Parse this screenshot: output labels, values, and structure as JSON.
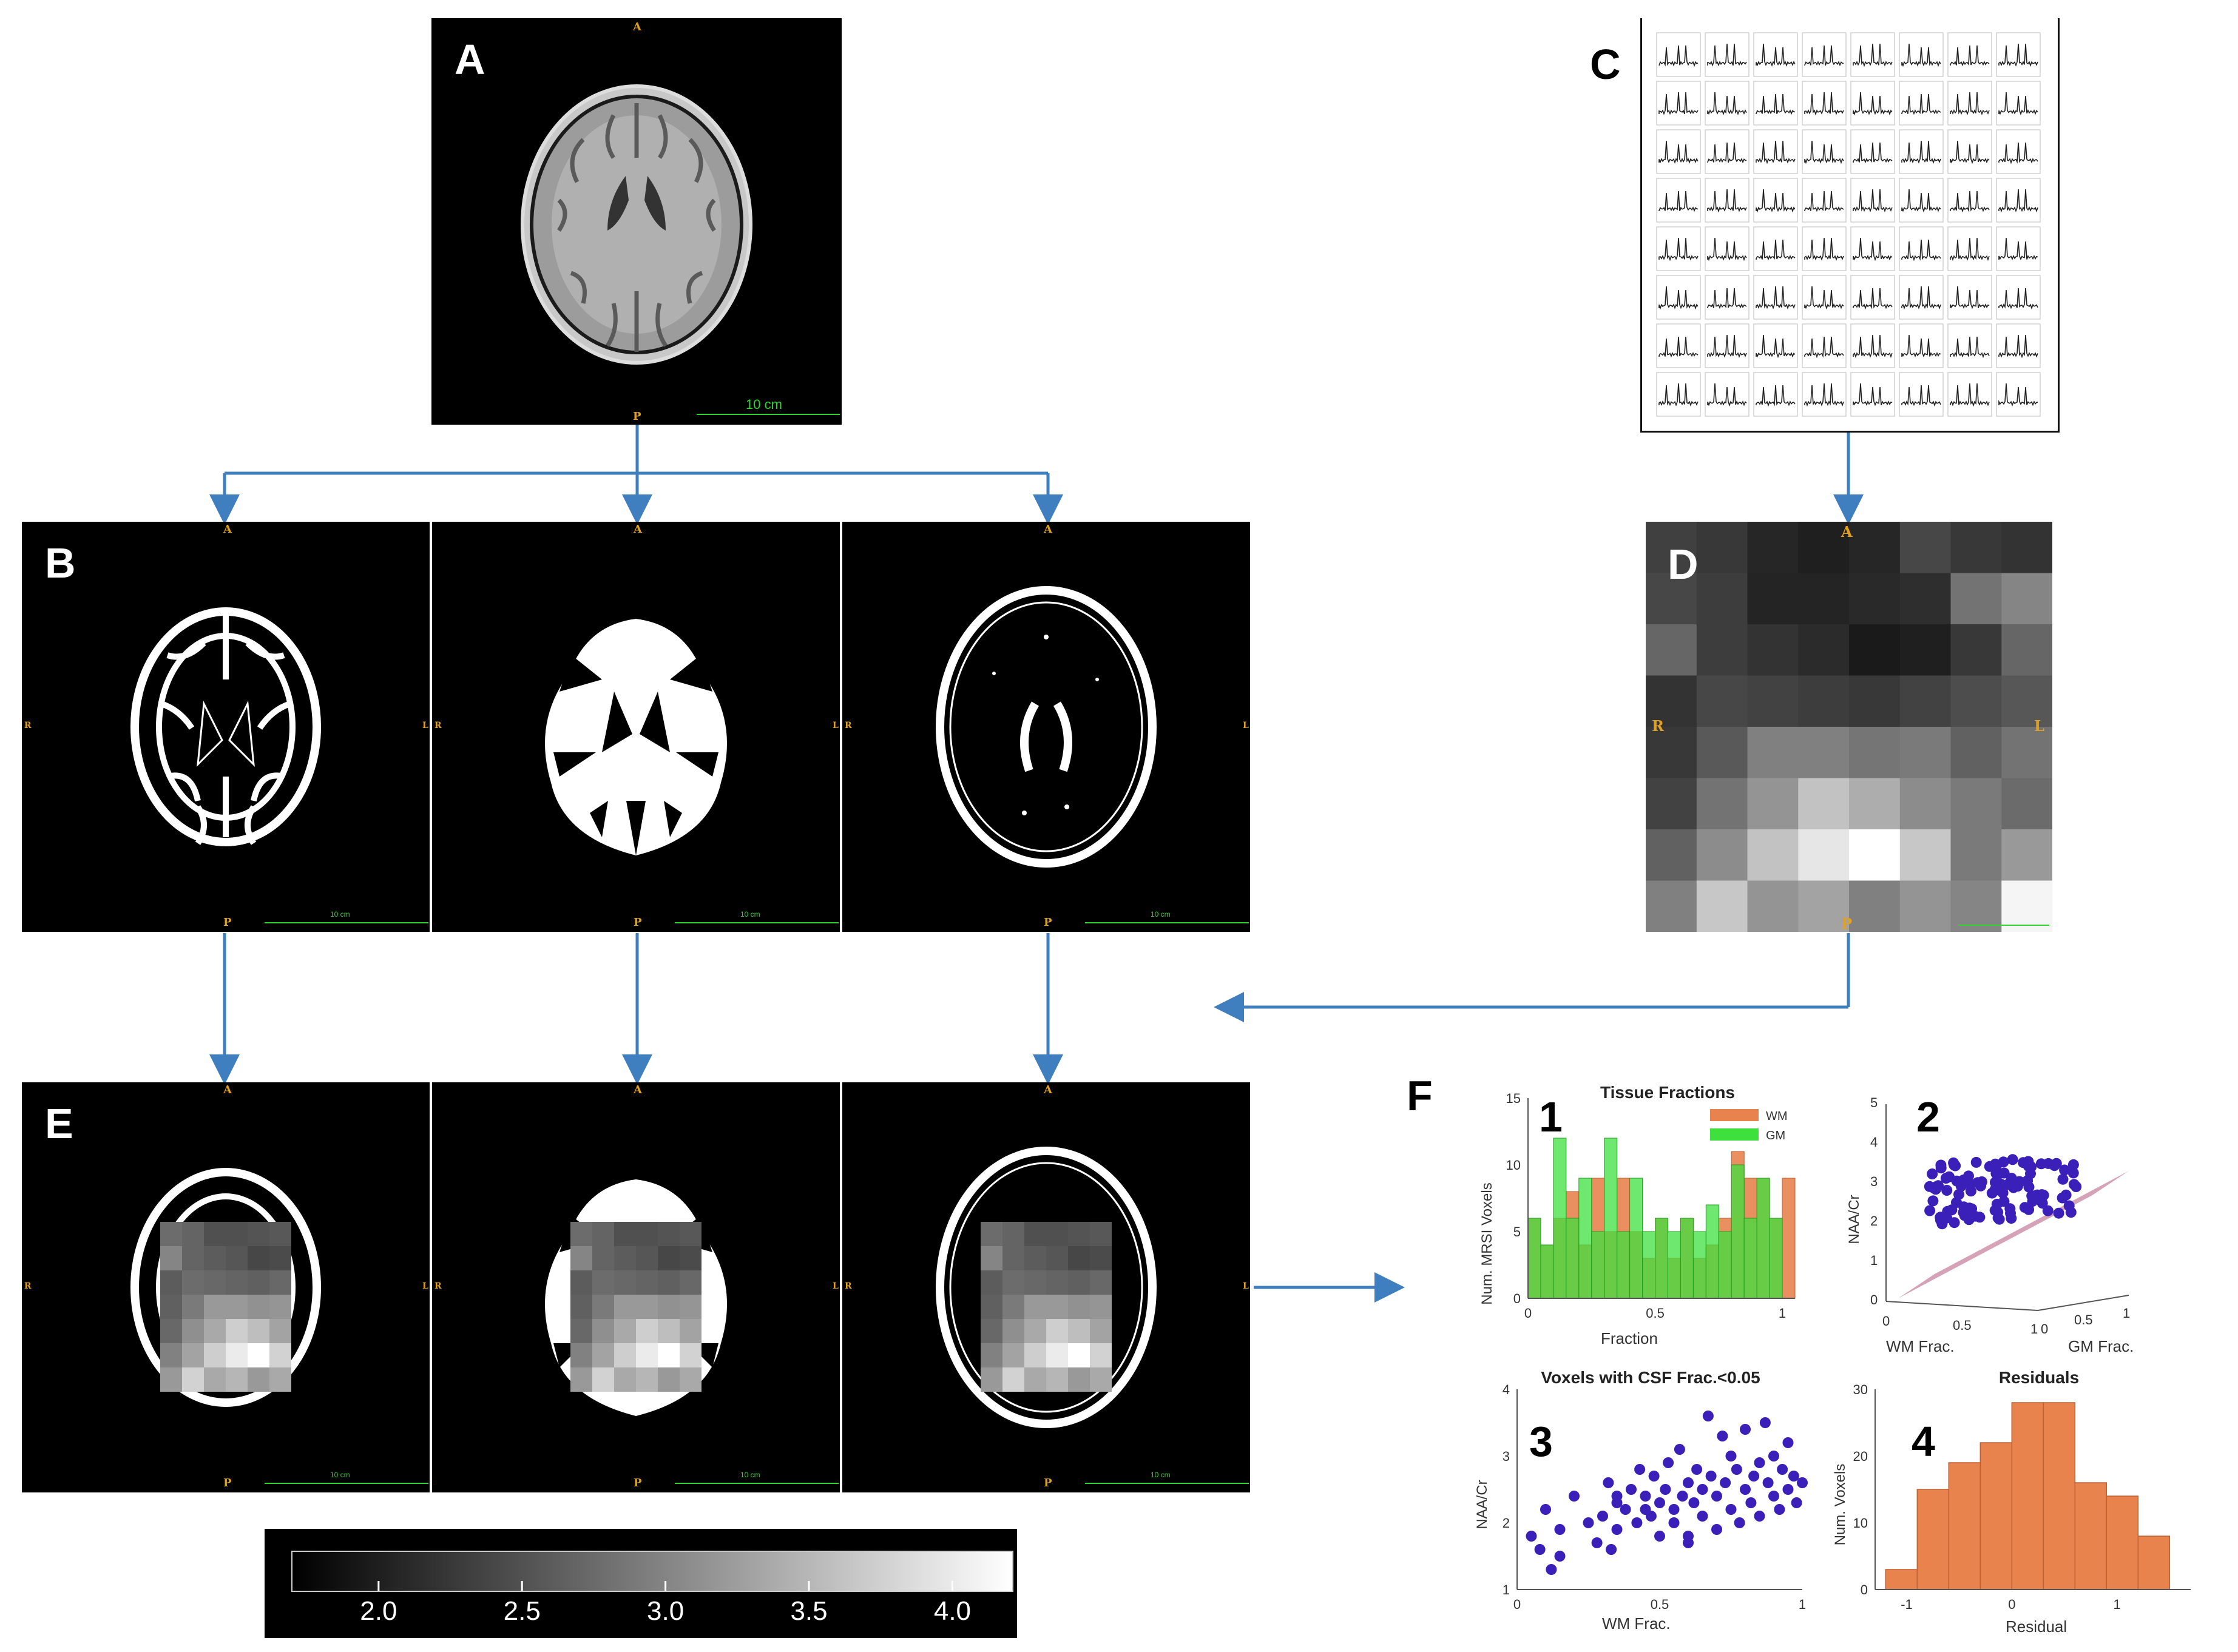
{
  "panel_labels": {
    "a": "A",
    "b": "B",
    "c": "C",
    "d": "D",
    "e": "E",
    "f": "F"
  },
  "orientation": {
    "anterior": "A",
    "posterior": "P",
    "right": "R",
    "left": "L"
  },
  "scale_text": "10 cm",
  "colorbar": {
    "ticks": [
      "2.0",
      "2.5",
      "3.0",
      "3.5",
      "4.0"
    ],
    "range": [
      1.7,
      4.2
    ]
  },
  "colors": {
    "arrow": "#3f7fbf",
    "wm": "#e8834e",
    "gm": "#3ee03e",
    "scatter": "#3a1fb8",
    "plane": "#c07090"
  },
  "subplots": {
    "n1": "1",
    "n2": "2",
    "n3": "3",
    "n4": "4",
    "p1_title": "Tissue Fractions",
    "p1_xlabel": "Fraction",
    "p1_ylabel": "Num. MRSI Voxels",
    "p1_legend_wm": "WM",
    "p1_legend_gm": "GM",
    "p2_zlabel": "NAA/Cr",
    "p2_xlabel": "WM Frac.",
    "p2_ylabel": "GM Frac.",
    "p3_title": "Voxels with CSF Frac.<0.05",
    "p3_xlabel": "WM Frac.",
    "p3_ylabel": "NAA/Cr",
    "p4_title": "Residuals",
    "p4_xlabel": "Residual",
    "p4_ylabel": "Num. Voxels"
  },
  "chart_data": [
    {
      "type": "bar",
      "title": "Tissue Fractions",
      "xlabel": "Fraction",
      "ylabel": "Num. MRSI Voxels",
      "xlim": [
        0,
        1.05
      ],
      "ylim": [
        0,
        15
      ],
      "xticks": [
        "0",
        "0.5",
        "1"
      ],
      "yticks": [
        "0",
        "5",
        "10",
        "15"
      ],
      "legend": "top-right",
      "bin_edges": [
        0,
        0.05,
        0.1,
        0.15,
        0.2,
        0.25,
        0.3,
        0.35,
        0.4,
        0.45,
        0.5,
        0.55,
        0.6,
        0.65,
        0.7,
        0.75,
        0.8,
        0.85,
        0.9,
        0.95,
        1.0,
        1.05
      ],
      "series": [
        {
          "name": "WM",
          "values": [
            6,
            4,
            6,
            8,
            4,
            9,
            5,
            9,
            5,
            3,
            6,
            3,
            6,
            3,
            4,
            6,
            11,
            9,
            9,
            6,
            9
          ]
        },
        {
          "name": "GM",
          "values": [
            6,
            4,
            12,
            6,
            9,
            5,
            12,
            5,
            9,
            5,
            6,
            5,
            6,
            5,
            7,
            5,
            10,
            6,
            9,
            6,
            0
          ]
        }
      ]
    },
    {
      "type": "scatter",
      "title": "",
      "xlabel": "WM Frac.",
      "ylabel": "GM Frac.",
      "zlabel": "NAA/Cr",
      "zlim": [
        0,
        5
      ],
      "zticks": [
        "0",
        "1",
        "2",
        "3",
        "4",
        "5"
      ],
      "xticks": [
        "0",
        "0.5",
        "1"
      ],
      "yticks": [
        "0",
        "0.5",
        "1"
      ],
      "points_count": "many",
      "fit": "plane"
    },
    {
      "type": "scatter",
      "title": "Voxels with CSF Frac.<0.05",
      "xlabel": "WM Frac.",
      "ylabel": "NAA/Cr",
      "xlim": [
        0,
        1
      ],
      "ylim": [
        1,
        4
      ],
      "xticks": [
        "0",
        "0.5",
        "1"
      ],
      "yticks": [
        "1",
        "2",
        "3",
        "4"
      ],
      "x": [
        0.05,
        0.08,
        0.1,
        0.12,
        0.15,
        0.15,
        0.2,
        0.25,
        0.28,
        0.3,
        0.32,
        0.33,
        0.35,
        0.35,
        0.38,
        0.4,
        0.42,
        0.43,
        0.45,
        0.47,
        0.48,
        0.5,
        0.5,
        0.52,
        0.53,
        0.55,
        0.55,
        0.57,
        0.58,
        0.6,
        0.6,
        0.62,
        0.63,
        0.65,
        0.65,
        0.67,
        0.68,
        0.7,
        0.7,
        0.72,
        0.73,
        0.75,
        0.75,
        0.77,
        0.78,
        0.8,
        0.8,
        0.82,
        0.83,
        0.85,
        0.85,
        0.87,
        0.88,
        0.9,
        0.9,
        0.92,
        0.93,
        0.95,
        0.95,
        0.97,
        0.98,
        1.0,
        0.35,
        0.45,
        0.6
      ],
      "y": [
        1.8,
        1.6,
        2.2,
        1.3,
        1.9,
        1.5,
        2.4,
        2.0,
        1.7,
        2.1,
        2.6,
        1.6,
        2.3,
        1.9,
        2.2,
        2.5,
        2.0,
        2.8,
        2.4,
        2.1,
        2.7,
        2.3,
        1.8,
        2.5,
        2.9,
        2.2,
        2.0,
        3.1,
        2.4,
        2.6,
        1.7,
        2.3,
        2.8,
        2.5,
        2.1,
        3.6,
        2.7,
        2.4,
        1.9,
        3.3,
        2.6,
        2.2,
        3.0,
        2.8,
        2.0,
        2.5,
        3.4,
        2.3,
        2.7,
        2.9,
        2.1,
        3.5,
        2.6,
        2.4,
        3.0,
        2.2,
        2.8,
        2.5,
        3.2,
        2.7,
        2.3,
        2.6,
        2.4,
        2.2,
        1.8
      ]
    },
    {
      "type": "bar",
      "title": "Residuals",
      "xlabel": "Residual",
      "ylabel": "Num. Voxels",
      "xlim": [
        -1.3,
        1.7
      ],
      "ylim": [
        0,
        30
      ],
      "xticks": [
        "-1",
        "0",
        "1"
      ],
      "yticks": [
        "0",
        "10",
        "20",
        "30"
      ],
      "bin_edges": [
        -1.2,
        -0.9,
        -0.6,
        -0.3,
        0,
        0.3,
        0.6,
        0.9,
        1.2,
        1.5
      ],
      "values": [
        3,
        15,
        19,
        22,
        28,
        28,
        16,
        14,
        8
      ]
    }
  ]
}
